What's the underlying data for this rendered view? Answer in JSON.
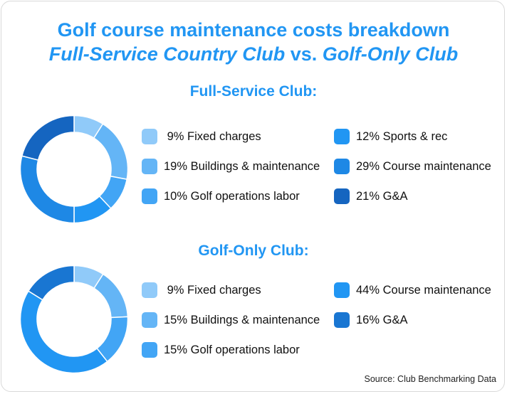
{
  "title_line1": "Golf course maintenance costs breakdown",
  "title_line2_a": "Full-Service Country Club",
  "title_line2_vs": " vs. ",
  "title_line2_b": "Golf-Only Club",
  "source": "Source: Club Benchmarking Data",
  "chart_data": [
    {
      "type": "pie",
      "title": "Full-Service Club:",
      "donut": true,
      "slices": [
        {
          "label": " 9% Fixed charges",
          "value": 9,
          "color": "#90caf9"
        },
        {
          "label": "19% Buildings & maintenance",
          "value": 19,
          "color": "#64b5f6"
        },
        {
          "label": "10% Golf operations labor",
          "value": 10,
          "color": "#42a5f5"
        },
        {
          "label": "12% Sports & rec",
          "value": 12,
          "color": "#2196f3"
        },
        {
          "label": "29% Course maintenance",
          "value": 29,
          "color": "#1e88e5"
        },
        {
          "label": "21% G&A",
          "value": 21,
          "color": "#1565c0"
        }
      ]
    },
    {
      "type": "pie",
      "title": "Golf-Only Club:",
      "donut": true,
      "slices": [
        {
          "label": " 9% Fixed charges",
          "value": 9,
          "color": "#90caf9"
        },
        {
          "label": "15% Buildings & maintenance",
          "value": 15,
          "color": "#64b5f6"
        },
        {
          "label": "15% Golf operations labor",
          "value": 15,
          "color": "#42a5f5"
        },
        {
          "label": "44% Course maintenance",
          "value": 44,
          "color": "#2196f3"
        },
        {
          "label": "16% G&A",
          "value": 16,
          "color": "#1976d2"
        }
      ]
    }
  ]
}
